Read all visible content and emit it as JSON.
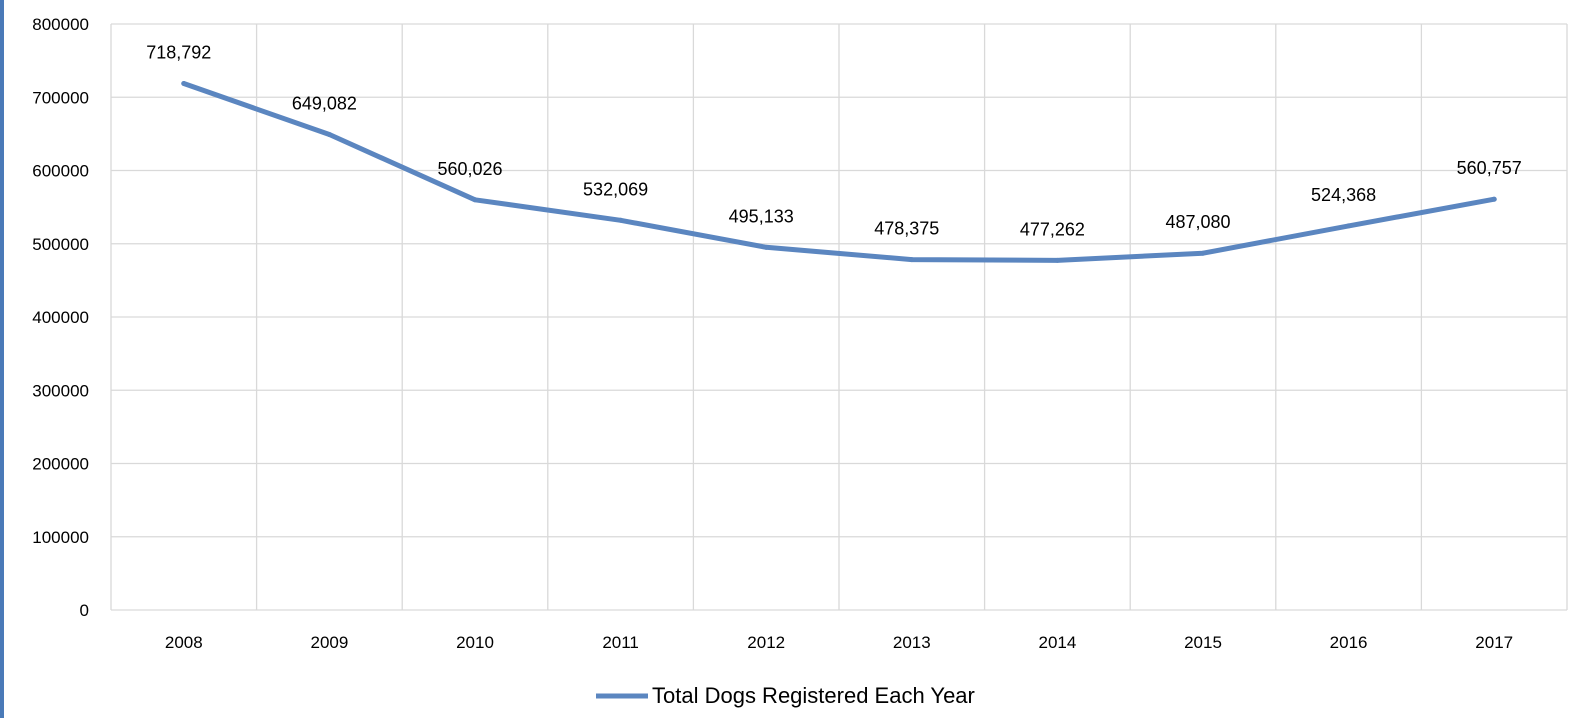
{
  "colors": {
    "series_line": "#5b86c0",
    "gridline": "#d9d9d9",
    "left_border": "#4a7ab8",
    "text": "#000000"
  },
  "chart_data": {
    "type": "line",
    "title": "",
    "xlabel": "",
    "ylabel": "",
    "categories": [
      "2008",
      "2009",
      "2010",
      "2011",
      "2012",
      "2013",
      "2014",
      "2015",
      "2016",
      "2017"
    ],
    "series": [
      {
        "name": "Total Dogs Registered Each Year",
        "values": [
          718792,
          649082,
          560026,
          532069,
          495133,
          478375,
          477262,
          487080,
          524368,
          560757
        ],
        "data_labels": [
          "718,792",
          "649,082",
          "560,026",
          "532,069",
          "495,133",
          "478,375",
          "477,262",
          "487,080",
          "524,368",
          "560,757"
        ]
      }
    ],
    "ylim": [
      0,
      800000
    ],
    "y_ticks": [
      "0",
      "100000",
      "200000",
      "300000",
      "400000",
      "500000",
      "600000",
      "700000",
      "800000"
    ],
    "grid": "both",
    "legend_position": "bottom"
  }
}
